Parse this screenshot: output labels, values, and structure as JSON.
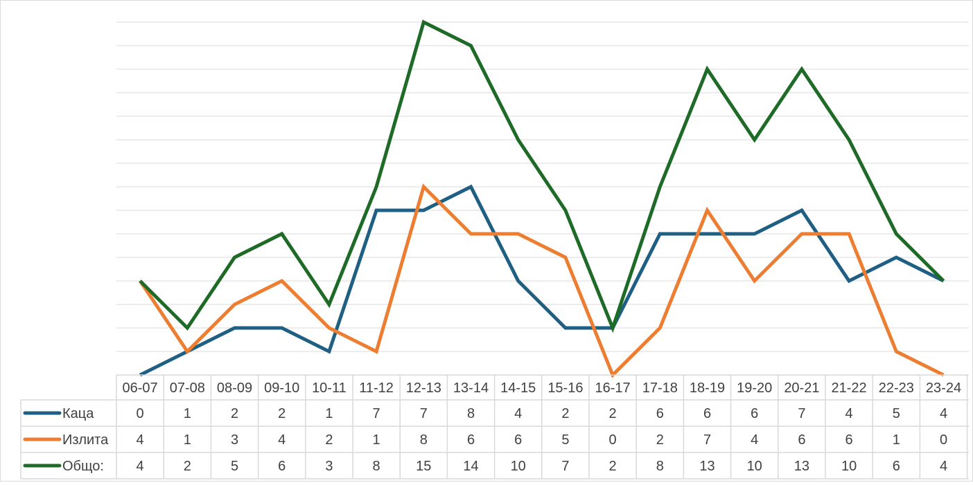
{
  "chart_data": {
    "type": "line",
    "title": "",
    "xlabel": "",
    "ylabel": "",
    "categories": [
      "06-07",
      "07-08",
      "08-09",
      "09-10",
      "10-11",
      "11-12",
      "12-13",
      "13-14",
      "14-15",
      "15-16",
      "16-17",
      "17-18",
      "18-19",
      "19-20",
      "20-21",
      "21-22",
      "22-23",
      "23-24"
    ],
    "ylim": [
      0,
      16
    ],
    "grid": true,
    "legend": "data-table",
    "series": [
      {
        "name": "Каца",
        "color": "#1f5f84",
        "values": [
          0,
          1,
          2,
          2,
          1,
          7,
          7,
          8,
          4,
          2,
          2,
          6,
          6,
          6,
          7,
          4,
          5,
          4
        ]
      },
      {
        "name": "Излита",
        "color": "#ed7d31",
        "values": [
          4,
          1,
          3,
          4,
          2,
          1,
          8,
          6,
          6,
          5,
          0,
          2,
          7,
          4,
          6,
          6,
          1,
          0
        ]
      },
      {
        "name": "Общо:",
        "color": "#1e6b27",
        "values": [
          4,
          2,
          5,
          6,
          3,
          8,
          15,
          14,
          10,
          7,
          2,
          8,
          13,
          10,
          13,
          10,
          6,
          4
        ]
      }
    ]
  }
}
